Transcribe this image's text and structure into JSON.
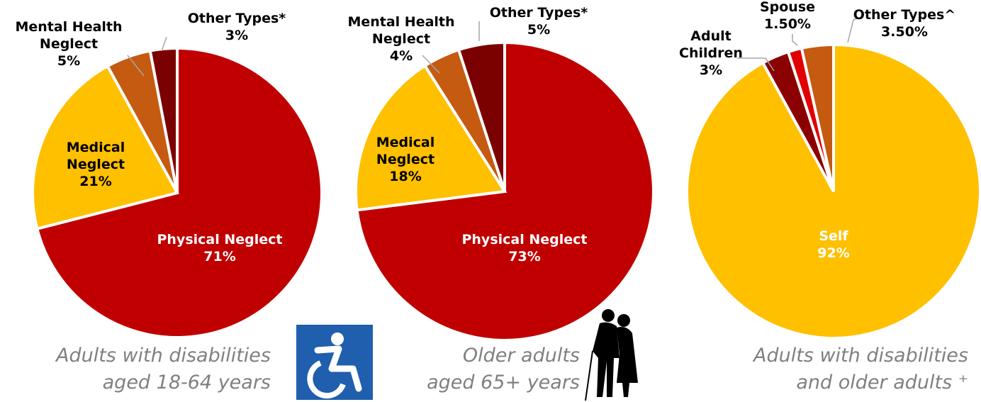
{
  "chart_data": [
    {
      "type": "pie",
      "categories": [
        "Physical Neglect",
        "Medical Neglect",
        "Mental Health Neglect",
        "Other Types*"
      ],
      "values": [
        71,
        21,
        5,
        3
      ],
      "value_labels": [
        "71%",
        "21%",
        "5%",
        "3%"
      ],
      "colors": [
        "#c00000",
        "#ffc000",
        "#c55a11",
        "#7b0000"
      ],
      "caption": [
        "Adults with disabilities",
        "aged 18-64 years"
      ]
    },
    {
      "type": "pie",
      "categories": [
        "Physical Neglect",
        "Medical Neglect",
        "Mental Health Neglect",
        "Other Types*"
      ],
      "values": [
        73,
        18,
        4,
        5
      ],
      "value_labels": [
        "73%",
        "18%",
        "4%",
        "5%"
      ],
      "colors": [
        "#c00000",
        "#ffc000",
        "#c55a11",
        "#7b0000"
      ],
      "caption": [
        "Older adults",
        "aged 65+ years"
      ]
    },
    {
      "type": "pie",
      "categories": [
        "Self",
        "Adult Children",
        "Spouse",
        "Other Types^"
      ],
      "values": [
        92,
        3,
        1.5,
        3.5
      ],
      "value_labels": [
        "92%",
        "3%",
        "1.50%",
        "3.50%"
      ],
      "colors": [
        "#ffc000",
        "#8b0000",
        "#e00000",
        "#c55a11"
      ],
      "caption": [
        "Adults with disabilities",
        "and older adults ⁺"
      ]
    }
  ]
}
